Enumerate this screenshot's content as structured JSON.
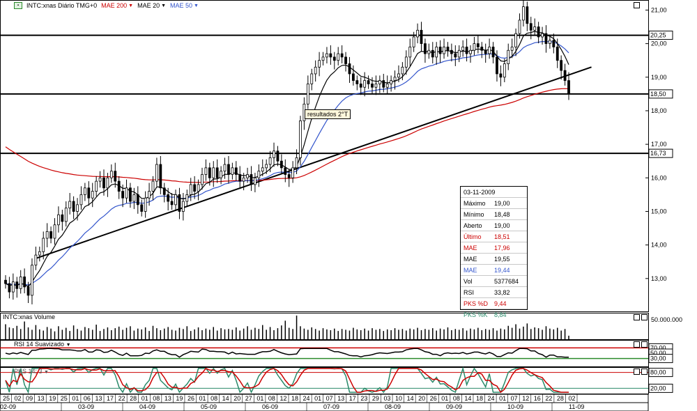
{
  "header": {
    "symbol": "INTC:xnas Diário TMG+0",
    "legend": [
      {
        "name": "MAE 200",
        "color": "#cc0000"
      },
      {
        "name": "MAE 20",
        "color": "#000000"
      },
      {
        "name": "MAE 50",
        "color": "#3355cc"
      }
    ]
  },
  "info_box": {
    "date": "03-11-2009",
    "rows": [
      {
        "k": "Máximo",
        "v": "19,00",
        "color": "#000000"
      },
      {
        "k": "Mínimo",
        "v": "18,48",
        "color": "#000000"
      },
      {
        "k": "Aberto",
        "v": "19,00",
        "color": "#000000"
      },
      {
        "k": "Último",
        "v": "18,51",
        "color": "#cc0000"
      },
      {
        "k": "MAE",
        "v": "17,96",
        "color": "#cc0000"
      },
      {
        "k": "MAE",
        "v": "19,55",
        "color": "#000000"
      },
      {
        "k": "MAE",
        "v": "19,44",
        "color": "#3355cc"
      },
      {
        "k": "Vol",
        "v": "5377684",
        "color": "#000000"
      },
      {
        "k": "RSI",
        "v": "33,82",
        "color": "#000000"
      },
      {
        "k": "PKS %D",
        "v": "9,44",
        "color": "#cc0000"
      },
      {
        "k": "PKS %K",
        "v": "8,84",
        "color": "#2a8a6a"
      }
    ]
  },
  "annotation": "resultados 2°T",
  "panels": {
    "volume_title": "INTC:xnas Volume",
    "volume_tick": "50.000.000",
    "rsi_title": "RSI 14 Suavizado",
    "rsi_ticks": [
      "70,00",
      "50,00",
      "30,00"
    ],
    "pks_title": "PKS 14; 3",
    "pks_ticks": [
      "80,00",
      "20,00"
    ]
  },
  "chart_data": {
    "type": "candlestick",
    "title": "INTC:xnas Diário TMG+0",
    "y_ticks": [
      "21,00",
      "20,00",
      "19,00",
      "18,00",
      "17,00",
      "16,00",
      "15,00",
      "14,00",
      "13,00"
    ],
    "ylim": [
      12.0,
      21.3
    ],
    "highlighted_levels": [
      "20,25",
      "18,50",
      "16,73"
    ],
    "horizontal_lines": [
      20.25,
      18.5,
      16.73
    ],
    "trendline": {
      "from": [
        8,
        13.6
      ],
      "to": [
        155,
        19.3
      ]
    },
    "day_ticks": [
      "25",
      "02",
      "09",
      "13",
      "19",
      "25",
      "01",
      "06",
      "13",
      "17",
      "22",
      "28",
      "01",
      "08",
      "13",
      "19",
      "26",
      "01",
      "08",
      "14",
      "20",
      "27",
      "01",
      "08",
      "12",
      "18",
      "24",
      "01",
      "07",
      "13",
      "17",
      "23",
      "29",
      "03",
      "10",
      "14",
      "20",
      "26",
      "01",
      "08",
      "14",
      "18",
      "24",
      "01",
      "07",
      "12",
      "16",
      "22",
      "28",
      "02"
    ],
    "month_labels": [
      "02-09",
      "03-09",
      "04-09",
      "05-09",
      "06-09",
      "07-09",
      "08-09",
      "09-09",
      "10-09",
      "11-09"
    ],
    "close": [
      12.85,
      12.6,
      12.9,
      12.7,
      13.05,
      12.75,
      12.5,
      13.4,
      13.7,
      13.8,
      14.2,
      14.4,
      14.2,
      14.6,
      14.9,
      14.7,
      15.1,
      15.3,
      15.0,
      15.2,
      15.5,
      15.7,
      15.4,
      15.6,
      15.9,
      16.0,
      15.7,
      16.0,
      16.2,
      15.9,
      15.6,
      15.4,
      15.7,
      15.3,
      15.5,
      15.2,
      15.0,
      15.4,
      15.6,
      15.9,
      16.4,
      15.7,
      15.5,
      15.3,
      15.2,
      15.5,
      15.0,
      15.3,
      15.5,
      15.8,
      15.6,
      15.8,
      16.1,
      16.3,
      16.0,
      16.3,
      16.0,
      16.2,
      16.4,
      16.1,
      16.3,
      16.1,
      15.9,
      16.0,
      16.1,
      15.8,
      16.0,
      16.2,
      16.3,
      16.4,
      16.6,
      16.8,
      16.5,
      16.3,
      16.1,
      16.0,
      16.3,
      16.6,
      17.7,
      18.2,
      18.8,
      19.1,
      19.3,
      19.5,
      19.6,
      19.7,
      19.6,
      19.5,
      19.7,
      19.6,
      19.4,
      19.1,
      18.9,
      18.8,
      18.7,
      18.9,
      18.8,
      18.7,
      18.8,
      18.9,
      18.7,
      18.8,
      18.9,
      19.0,
      19.1,
      19.3,
      19.6,
      19.9,
      20.2,
      20.4,
      20.0,
      19.7,
      19.8,
      19.6,
      19.9,
      19.7,
      19.9,
      19.8,
      19.7,
      19.6,
      19.8,
      19.9,
      19.7,
      19.8,
      20.0,
      19.9,
      19.8,
      19.7,
      19.9,
      19.6,
      19.1,
      19.0,
      19.4,
      19.8,
      19.9,
      20.3,
      20.7,
      21.1,
      20.6,
      20.4,
      20.5,
      20.2,
      20.3,
      20.0,
      20.1,
      19.9,
      19.5,
      19.2,
      18.9,
      18.51
    ],
    "volume": [
      38,
      30,
      28,
      34,
      26,
      45,
      30,
      24,
      36,
      25,
      22,
      31,
      27,
      20,
      33,
      24,
      29,
      21,
      35,
      26,
      22,
      31,
      28,
      24,
      37,
      21,
      26,
      30,
      23,
      28,
      32,
      24,
      29,
      33,
      22,
      27,
      25,
      30,
      21,
      34,
      28,
      23,
      27,
      31,
      24,
      22,
      29,
      26,
      33,
      21,
      25,
      30,
      23,
      27,
      24,
      31,
      22,
      28,
      25,
      26,
      24,
      30,
      22,
      27,
      33,
      24,
      29,
      26,
      36,
      24,
      31,
      23,
      28,
      35,
      47,
      29,
      26,
      60,
      33,
      27,
      24,
      30,
      26,
      22,
      28,
      25,
      23,
      27,
      21,
      26,
      24,
      22,
      29,
      25,
      23,
      27,
      22,
      28,
      24,
      26,
      21,
      25,
      23,
      28,
      24,
      26,
      22,
      27,
      25,
      29,
      23,
      26,
      24,
      28,
      22,
      27,
      25,
      30,
      23,
      26,
      24,
      28,
      22,
      27,
      25,
      29,
      23,
      26,
      24,
      28,
      22,
      27,
      25,
      34,
      29,
      38,
      27,
      32,
      40,
      26,
      30,
      28,
      24,
      33,
      27,
      25,
      29,
      22,
      26,
      9
    ]
  }
}
